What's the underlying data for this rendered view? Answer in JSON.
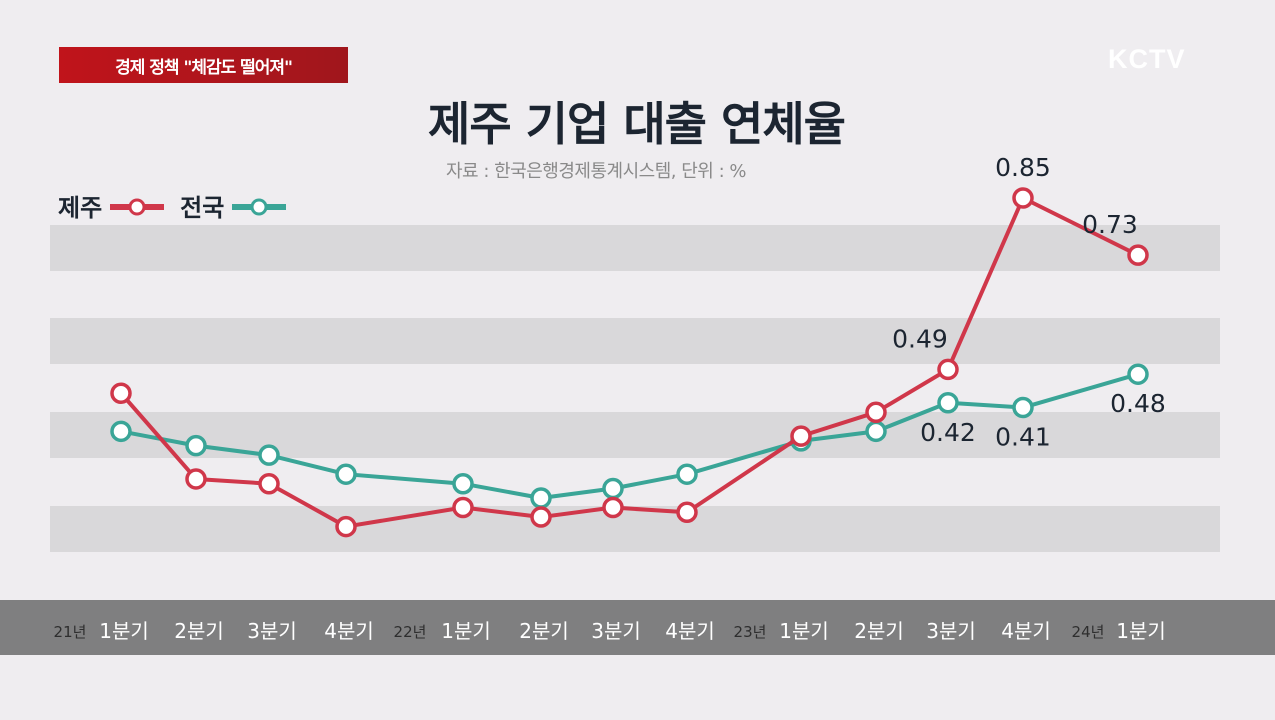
{
  "banner": "경제 정책 \"체감도 떨어져\"",
  "logo": "KCTV",
  "chart_data": {
    "type": "line",
    "title": "제주 기업 대출 연체율",
    "subtitle": "자료 : 한국은행경제통계시스템, 단위 : %",
    "categories": [
      "1분기",
      "2분기",
      "3분기",
      "4분기",
      "1분기",
      "2분기",
      "3분기",
      "4분기",
      "1분기",
      "2분기",
      "3분기",
      "4분기",
      "1분기"
    ],
    "year_labels": [
      {
        "index": 0,
        "label": "21년"
      },
      {
        "index": 4,
        "label": "22년"
      },
      {
        "index": 8,
        "label": "23년"
      },
      {
        "index": 12,
        "label": "24년"
      }
    ],
    "series": [
      {
        "name": "제주",
        "color": "#d0374a",
        "values": [
          0.44,
          0.26,
          0.25,
          0.16,
          0.2,
          0.18,
          0.2,
          0.19,
          0.35,
          0.4,
          0.49,
          0.85,
          0.73
        ],
        "labels": [
          {
            "index": 10,
            "text": "0.49",
            "pos": "above-left"
          },
          {
            "index": 11,
            "text": "0.85",
            "pos": "above"
          },
          {
            "index": 12,
            "text": "0.73",
            "pos": "above-left"
          }
        ]
      },
      {
        "name": "전국",
        "color": "#3aa597",
        "values": [
          0.36,
          0.33,
          0.31,
          0.27,
          0.25,
          0.22,
          0.24,
          0.27,
          0.34,
          0.36,
          0.42,
          0.41,
          0.48
        ],
        "labels": [
          {
            "index": 10,
            "text": "0.42",
            "pos": "below"
          },
          {
            "index": 11,
            "text": "0.41",
            "pos": "below"
          },
          {
            "index": 12,
            "text": "0.48",
            "pos": "below"
          }
        ]
      }
    ],
    "legend": "top-left",
    "grid": "horizontal bands"
  }
}
